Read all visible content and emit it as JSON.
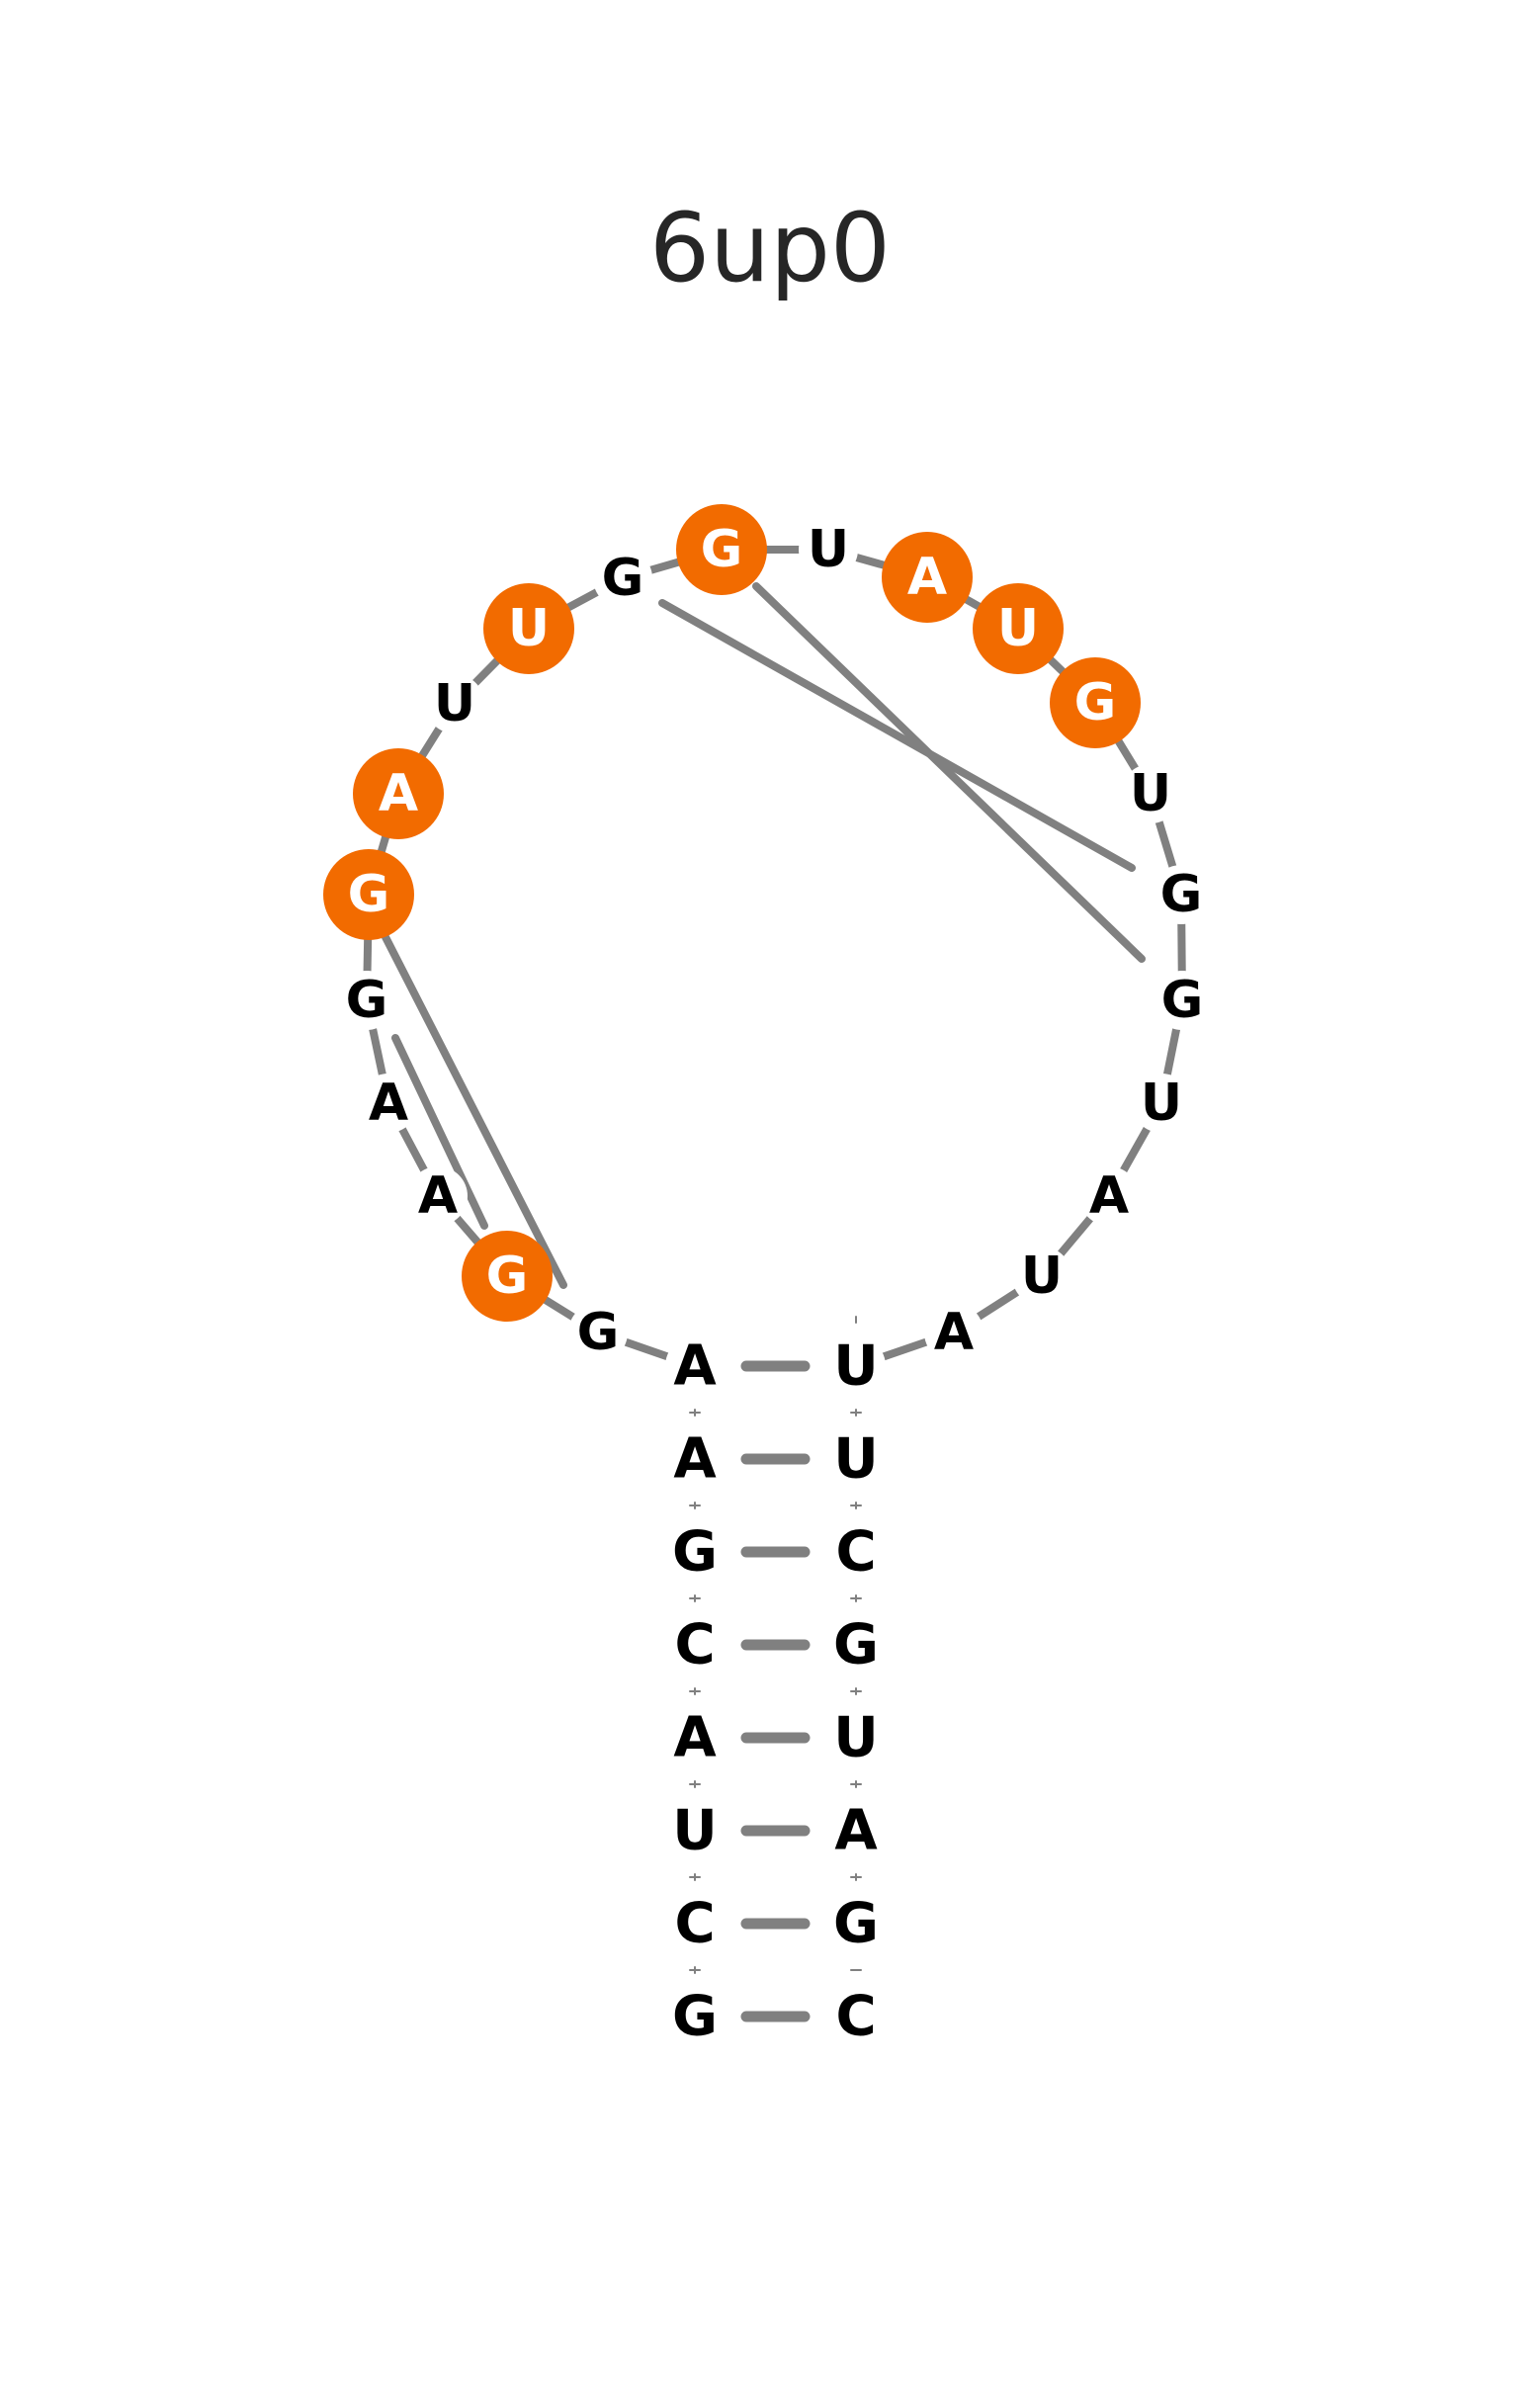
{
  "title": "6up0",
  "colors": {
    "highlight": "#f26b00",
    "backbone": "#808080",
    "pair": "#808080",
    "base_text": "#000000",
    "highlight_text": "#ffffff",
    "title_text": "#262626"
  },
  "nucleotides": [
    {
      "base": "G",
      "highlighted": false
    },
    {
      "base": "C",
      "highlighted": false
    },
    {
      "base": "U",
      "highlighted": false
    },
    {
      "base": "A",
      "highlighted": false
    },
    {
      "base": "C",
      "highlighted": false
    },
    {
      "base": "G",
      "highlighted": false
    },
    {
      "base": "A",
      "highlighted": false
    },
    {
      "base": "A",
      "highlighted": false
    },
    {
      "base": "G",
      "highlighted": false
    },
    {
      "base": "G",
      "highlighted": true
    },
    {
      "base": "A",
      "highlighted": false
    },
    {
      "base": "A",
      "highlighted": false
    },
    {
      "base": "G",
      "highlighted": false
    },
    {
      "base": "G",
      "highlighted": true
    },
    {
      "base": "A",
      "highlighted": true
    },
    {
      "base": "U",
      "highlighted": false
    },
    {
      "base": "U",
      "highlighted": true
    },
    {
      "base": "G",
      "highlighted": false
    },
    {
      "base": "G",
      "highlighted": true
    },
    {
      "base": "U",
      "highlighted": false
    },
    {
      "base": "A",
      "highlighted": true
    },
    {
      "base": "U",
      "highlighted": true
    },
    {
      "base": "G",
      "highlighted": true
    },
    {
      "base": "U",
      "highlighted": false
    },
    {
      "base": "G",
      "highlighted": false
    },
    {
      "base": "G",
      "highlighted": false
    },
    {
      "base": "U",
      "highlighted": false
    },
    {
      "base": "A",
      "highlighted": false
    },
    {
      "base": "U",
      "highlighted": false
    },
    {
      "base": "A",
      "highlighted": false
    },
    {
      "base": "U",
      "highlighted": false
    },
    {
      "base": "U",
      "highlighted": false
    },
    {
      "base": "C",
      "highlighted": false
    },
    {
      "base": "G",
      "highlighted": false
    },
    {
      "base": "U",
      "highlighted": false
    },
    {
      "base": "A",
      "highlighted": false
    },
    {
      "base": "G",
      "highlighted": false
    },
    {
      "base": "C",
      "highlighted": false
    }
  ],
  "stem_pairs": [
    [
      1,
      38
    ],
    [
      2,
      37
    ],
    [
      3,
      36
    ],
    [
      4,
      35
    ],
    [
      5,
      34
    ],
    [
      6,
      33
    ],
    [
      7,
      32
    ],
    [
      8,
      31
    ]
  ],
  "tertiary_pairs": [
    [
      18,
      24
    ],
    [
      13,
      10
    ],
    [
      19,
      25
    ],
    [
      14,
      11
    ]
  ]
}
